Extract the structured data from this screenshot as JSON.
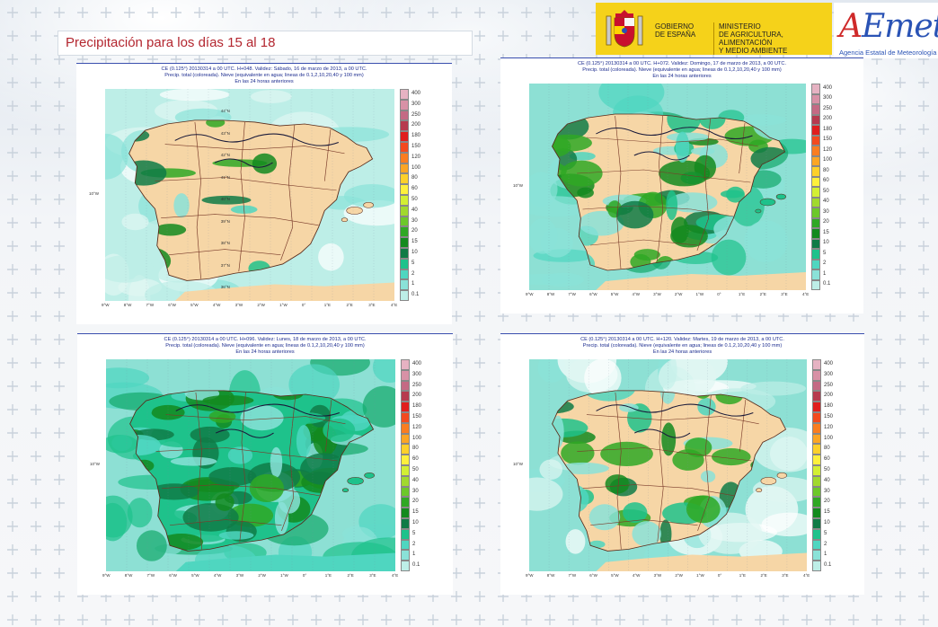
{
  "page": {
    "title": "Precipitación para los días 15 al 18"
  },
  "header": {
    "gov_line1": "GOBIERNO",
    "gov_line2": "DE ESPAÑA",
    "ministry_line1": "MINISTERIO",
    "ministry_line2": "DE AGRICULTURA, ALIMENTACIÓN",
    "ministry_line3": "Y MEDIO AMBIENTE",
    "aemet_logo": "AEMet",
    "aemet_sub": "Agencia Estatal de Meteorología",
    "coat_icon": "spain-coat-of-arms-icon"
  },
  "legend": {
    "values": [
      "400",
      "300",
      "250",
      "200",
      "180",
      "150",
      "120",
      "100",
      "80",
      "60",
      "50",
      "40",
      "30",
      "20",
      "15",
      "10",
      "5",
      "2",
      "1",
      "0.1"
    ],
    "colors": [
      "#e6b2c2",
      "#d891a6",
      "#c46a84",
      "#b73a4e",
      "#e01e1e",
      "#f34a1f",
      "#fa7d20",
      "#fba524",
      "#fdd02a",
      "#fef03c",
      "#d3ef33",
      "#a1d92e",
      "#6cc82a",
      "#2fa824",
      "#138a1e",
      "#0f7b46",
      "#1ec28b",
      "#4fd6c0",
      "#8ae2d8",
      "#bdeee7"
    ]
  },
  "lon_labels": [
    "9°W",
    "8°W",
    "7°W",
    "6°W",
    "5°W",
    "4°W",
    "3°W",
    "2°W",
    "1°W",
    "0°",
    "1°E",
    "2°E",
    "3°E",
    "4°E"
  ],
  "lat_label": "10°W",
  "lat_labels_map1": [
    "44°N",
    "43°N",
    "42°N",
    "41°N",
    "40°N",
    "39°N",
    "38°N",
    "37°N",
    "36°N"
  ],
  "panels": [
    {
      "cap1": "CE (0.125°) 20130314 a 00 UTC.  H+048. Validez: Sábado, 16 de marzo de 2013,  a  00 UTC.",
      "cap2": "Precip. total (coloreada). Nieve (equivalente en agua; lineas de 0.1,2,10,20,40 y 100 mm)",
      "cap3": "En las 24 horas anteriores",
      "wetness": 0.15
    },
    {
      "cap1": "CE (0.125°) 20130314 a 00 UTC.  H+072. Validez: Domingo, 17 de marzo de 2013,  a  00 UTC.",
      "cap2": "Precip. total (coloreada). Nieve (equivalente en agua; lineas de 0.1,2,10,20,40 y 100 mm)",
      "cap3": "En las 24 horas anteriores",
      "wetness": 0.7
    },
    {
      "cap1": "CE (0.125°) 20130314 a 00 UTC.  H+096. Validez: Lunes, 18 de marzo de 2013,  a  00 UTC.",
      "cap2": "Precip. total (coloreada). Nieve (equivalente en agua; lineas de 0.1,2,10,20,40 y 100 mm)",
      "cap3": "En las 24 horas anteriores",
      "wetness": 0.95
    },
    {
      "cap1": "CE (0.125°) 20130314 a 00 UTC.  H+120. Validez: Martes, 19 de marzo de 2013,  a  00 UTC.",
      "cap2": "Precip. total (coloreada). Nieve (equivalente en agua; lineas de 0.1,2,10,20,40 y 100 mm)",
      "cap3": "En las 24 horas anteriores",
      "wetness": 0.55
    }
  ]
}
